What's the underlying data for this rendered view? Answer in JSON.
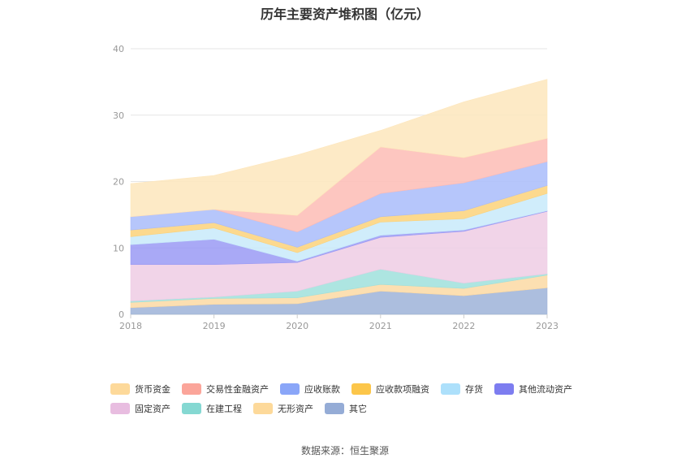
{
  "chart_data": {
    "type": "area",
    "stacked": true,
    "title": "历年主要资产堆积图（亿元）",
    "categories": [
      "2018",
      "2019",
      "2020",
      "2021",
      "2022",
      "2023"
    ],
    "ylim": [
      0,
      40
    ],
    "yticks": [
      0,
      10,
      20,
      30,
      40
    ],
    "series": [
      {
        "name": "其它",
        "color": "#9db3d8",
        "values": [
          1.0,
          1.5,
          1.6,
          3.5,
          2.8,
          4.0
        ]
      },
      {
        "name": "无形资产",
        "color": "#fcd9a3",
        "values": [
          0.8,
          0.9,
          0.9,
          1.0,
          1.1,
          1.9
        ]
      },
      {
        "name": "在建工程",
        "color": "#9fe0dc",
        "values": [
          0.2,
          0.2,
          1.0,
          2.3,
          0.8,
          0.2
        ]
      },
      {
        "name": "固定资产",
        "color": "#efcce4",
        "values": [
          5.5,
          4.9,
          4.3,
          4.8,
          7.8,
          9.4
        ]
      },
      {
        "name": "其他流动资产",
        "color": "#9a9af4",
        "values": [
          3.0,
          3.8,
          0.2,
          0.3,
          0.2,
          0.1
        ]
      },
      {
        "name": "存货",
        "color": "#c8eafa",
        "values": [
          1.2,
          1.7,
          1.3,
          2.0,
          1.7,
          2.6
        ]
      },
      {
        "name": "应收款项融资",
        "color": "#fcd27a",
        "values": [
          1.0,
          0.8,
          0.8,
          0.8,
          1.2,
          1.2
        ]
      },
      {
        "name": "应收账款",
        "color": "#a9bcfa",
        "values": [
          2.0,
          2.0,
          2.3,
          3.5,
          4.2,
          3.6
        ]
      },
      {
        "name": "交易性金融资产",
        "color": "#fdbcb5",
        "values": [
          0.0,
          0.0,
          2.5,
          7.0,
          3.8,
          3.5
        ]
      },
      {
        "name": "货币资金",
        "color": "#fde6bc",
        "values": [
          5.0,
          5.1,
          9.1,
          2.5,
          8.4,
          8.9
        ]
      }
    ],
    "legend": [
      {
        "name": "货币资金",
        "color": "#fdd99a"
      },
      {
        "name": "交易性金融资产",
        "color": "#fba59a"
      },
      {
        "name": "应收账款",
        "color": "#8aa6f8"
      },
      {
        "name": "应收款项融资",
        "color": "#fcc64a"
      },
      {
        "name": "存货",
        "color": "#ade0fb"
      },
      {
        "name": "其他流动资产",
        "color": "#7d7df0"
      },
      {
        "name": "固定资产",
        "color": "#e8bde0"
      },
      {
        "name": "在建工程",
        "color": "#85d8d2"
      },
      {
        "name": "无形资产",
        "color": "#fdd99a"
      },
      {
        "name": "其它",
        "color": "#95acd6"
      }
    ]
  },
  "source": "数据来源：恒生聚源"
}
